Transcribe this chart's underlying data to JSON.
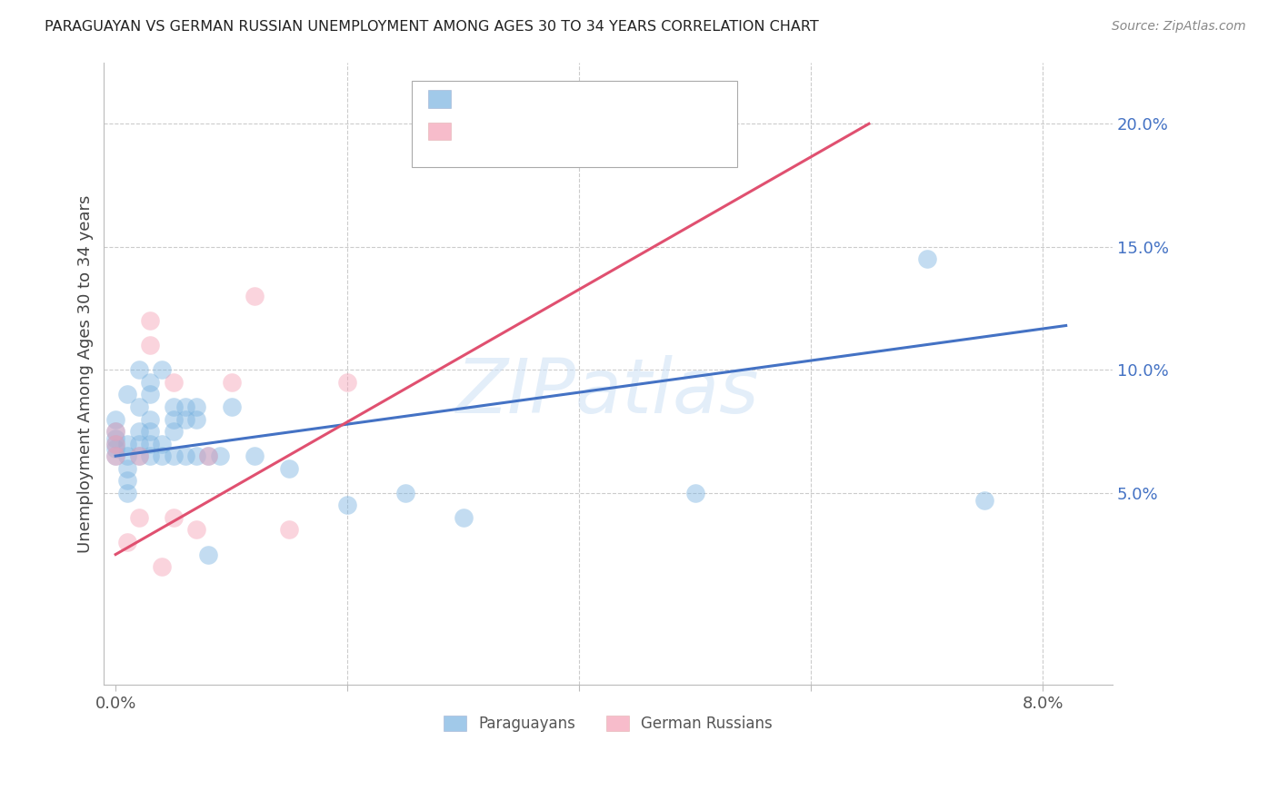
{
  "title": "PARAGUAYAN VS GERMAN RUSSIAN UNEMPLOYMENT AMONG AGES 30 TO 34 YEARS CORRELATION CHART",
  "source": "Source: ZipAtlas.com",
  "ylabel": "Unemployment Among Ages 30 to 34 years",
  "blue_color": "#7ab3e0",
  "pink_color": "#f4a0b5",
  "blue_line_color": "#4472c4",
  "pink_line_color": "#e05070",
  "watermark": "ZIPatlas",
  "xlim": [
    -0.001,
    0.086
  ],
  "ylim": [
    -0.028,
    0.225
  ],
  "x_tick_positions": [
    0.0,
    0.02,
    0.04,
    0.06,
    0.08
  ],
  "x_tick_labels": [
    "0.0%",
    "",
    "",
    "",
    "8.0%"
  ],
  "y_tick_positions": [
    0.05,
    0.1,
    0.15,
    0.2
  ],
  "y_tick_labels": [
    "5.0%",
    "10.0%",
    "15.0%",
    "20.0%"
  ],
  "paraguayan_x": [
    0.0,
    0.0,
    0.0,
    0.0,
    0.0,
    0.0,
    0.001,
    0.001,
    0.001,
    0.001,
    0.001,
    0.001,
    0.002,
    0.002,
    0.002,
    0.002,
    0.002,
    0.003,
    0.003,
    0.003,
    0.003,
    0.003,
    0.003,
    0.004,
    0.004,
    0.004,
    0.005,
    0.005,
    0.005,
    0.005,
    0.006,
    0.006,
    0.006,
    0.007,
    0.007,
    0.007,
    0.008,
    0.008,
    0.009,
    0.01,
    0.012,
    0.015,
    0.02,
    0.025,
    0.03,
    0.05,
    0.07,
    0.075
  ],
  "paraguayan_y": [
    0.065,
    0.068,
    0.07,
    0.072,
    0.075,
    0.08,
    0.05,
    0.055,
    0.06,
    0.065,
    0.07,
    0.09,
    0.065,
    0.07,
    0.075,
    0.085,
    0.1,
    0.065,
    0.07,
    0.075,
    0.08,
    0.09,
    0.095,
    0.065,
    0.07,
    0.1,
    0.065,
    0.075,
    0.08,
    0.085,
    0.065,
    0.08,
    0.085,
    0.065,
    0.08,
    0.085,
    0.025,
    0.065,
    0.065,
    0.085,
    0.065,
    0.06,
    0.045,
    0.05,
    0.04,
    0.05,
    0.145,
    0.047
  ],
  "german_russian_x": [
    0.0,
    0.0,
    0.0,
    0.001,
    0.002,
    0.002,
    0.003,
    0.003,
    0.004,
    0.005,
    0.005,
    0.007,
    0.008,
    0.01,
    0.012,
    0.015,
    0.02
  ],
  "german_russian_y": [
    0.065,
    0.07,
    0.075,
    0.03,
    0.04,
    0.065,
    0.11,
    0.12,
    0.02,
    0.04,
    0.095,
    0.035,
    0.065,
    0.095,
    0.13,
    0.035,
    0.095
  ],
  "paraguayan_trendline_x": [
    0.0,
    0.082
  ],
  "paraguayan_trendline_y": [
    0.065,
    0.118
  ],
  "german_russian_trendline_x": [
    0.0,
    0.065
  ],
  "german_russian_trendline_y": [
    0.025,
    0.2
  ]
}
